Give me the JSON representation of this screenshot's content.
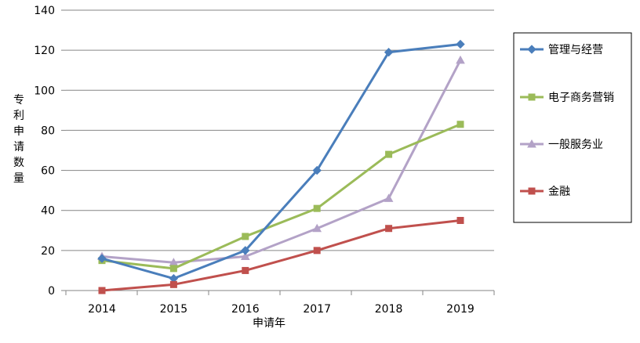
{
  "chart_data": {
    "type": "line",
    "title": "",
    "xlabel": "申请年",
    "ylabel": "专利申请数量",
    "x": [
      "2014",
      "2015",
      "2016",
      "2017",
      "2018",
      "2019"
    ],
    "ylim": [
      0,
      140
    ],
    "yticks": [
      0,
      20,
      40,
      60,
      80,
      100,
      120,
      140
    ],
    "grid": true,
    "legend_position": "right",
    "series": [
      {
        "name": "管理与经营",
        "color": "#4a7ebb",
        "marker": "diamond",
        "values": [
          16,
          6,
          20,
          60,
          119,
          123
        ]
      },
      {
        "name": "电子商务营销",
        "color": "#9bbb59",
        "marker": "square",
        "values": [
          15,
          11,
          27,
          41,
          68,
          83
        ]
      },
      {
        "name": "一般服务业",
        "color": "#b3a2c7",
        "marker": "triangle",
        "values": [
          17,
          14,
          17,
          31,
          46,
          115
        ]
      },
      {
        "name": "金融",
        "color": "#c0504d",
        "marker": "square",
        "values": [
          0,
          3,
          10,
          20,
          31,
          35
        ]
      }
    ]
  }
}
